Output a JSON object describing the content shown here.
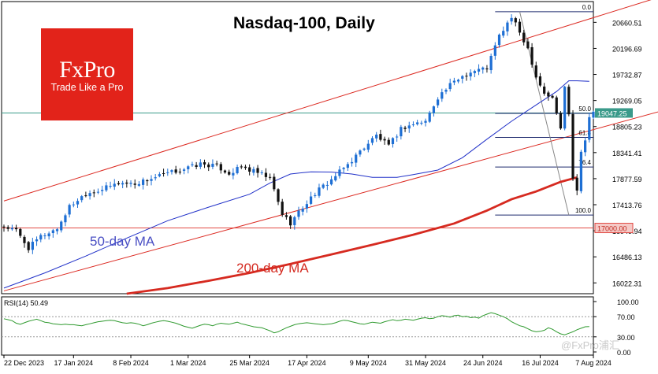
{
  "chart_data": [
    {
      "type": "candlestick",
      "title": "Nasdaq-100, Daily",
      "x_ticks": [
        "22 Dec 2023",
        "17 Jan 2024",
        "8 Feb 2024",
        "1 Mar 2024",
        "25 Mar 2024",
        "17 Apr 2024",
        "9 May 2024",
        "31 May 2024",
        "24 Jun 2024",
        "16 Jul 2024",
        "7 Aug 2024"
      ],
      "y_ticks": [
        20660.51,
        20196.69,
        19732.87,
        19269.05,
        18805.23,
        18341.41,
        17877.59,
        17413.76,
        16949.94,
        16486.13,
        16022.31
      ],
      "ylim": [
        15830,
        21030
      ],
      "last_price": 19047.25,
      "horizontal_level": 17000.0,
      "fib_levels": [
        {
          "label": "0.0",
          "value": 20850
        },
        {
          "label": "50.0",
          "value": 19040
        },
        {
          "label": "61.8",
          "value": 18612
        },
        {
          "label": "76.4",
          "value": 18085
        },
        {
          "label": "100.0",
          "value": 17230
        }
      ],
      "channel_upper": [
        {
          "x": 0,
          "y": 17480
        },
        {
          "x": 165,
          "y": 21220
        }
      ],
      "channel_lower": [
        {
          "x": 0,
          "y": 15880
        },
        {
          "x": 165,
          "y": 19170
        }
      ],
      "ma_50_label": "50-day MA",
      "ma_200_label": "200-day MA",
      "ma_50": [
        [
          0,
          15930
        ],
        [
          10,
          16200
        ],
        [
          20,
          16500
        ],
        [
          30,
          16820
        ],
        [
          40,
          17130
        ],
        [
          50,
          17370
        ],
        [
          60,
          17600
        ],
        [
          65,
          17800
        ],
        [
          70,
          17960
        ],
        [
          75,
          18000
        ],
        [
          80,
          17995
        ],
        [
          85,
          17960
        ],
        [
          90,
          17900
        ],
        [
          96,
          17900
        ],
        [
          100,
          17950
        ],
        [
          106,
          18030
        ],
        [
          112,
          18250
        ],
        [
          118,
          18580
        ],
        [
          124,
          18900
        ],
        [
          130,
          19190
        ],
        [
          135,
          19430
        ],
        [
          138,
          19620
        ],
        [
          140,
          19620
        ],
        [
          143,
          19610
        ]
      ],
      "ma_200": [
        [
          30,
          15830
        ],
        [
          40,
          15930
        ],
        [
          50,
          16060
        ],
        [
          60,
          16200
        ],
        [
          70,
          16360
        ],
        [
          80,
          16530
        ],
        [
          90,
          16700
        ],
        [
          100,
          16880
        ],
        [
          110,
          17080
        ],
        [
          118,
          17310
        ],
        [
          124,
          17510
        ],
        [
          130,
          17650
        ],
        [
          136,
          17820
        ],
        [
          140,
          17900
        ]
      ],
      "close_path": [
        [
          0,
          17020
        ],
        [
          3,
          16950
        ],
        [
          6,
          16640
        ],
        [
          9,
          16850
        ],
        [
          13,
          16990
        ],
        [
          16,
          17380
        ],
        [
          20,
          17620
        ],
        [
          24,
          17690
        ],
        [
          28,
          17800
        ],
        [
          32,
          17790
        ],
        [
          36,
          17880
        ],
        [
          40,
          17970
        ],
        [
          44,
          18050
        ],
        [
          48,
          18140
        ],
        [
          52,
          18100
        ],
        [
          55,
          17970
        ],
        [
          58,
          18080
        ],
        [
          62,
          17980
        ],
        [
          65,
          17880
        ],
        [
          68,
          17250
        ],
        [
          70,
          17090
        ],
        [
          72,
          17280
        ],
        [
          76,
          17620
        ],
        [
          80,
          17860
        ],
        [
          84,
          18130
        ],
        [
          88,
          18440
        ],
        [
          91,
          18650
        ],
        [
          94,
          18450
        ],
        [
          97,
          18770
        ],
        [
          100,
          18850
        ],
        [
          103,
          18900
        ],
        [
          106,
          19330
        ],
        [
          109,
          19540
        ],
        [
          112,
          19710
        ],
        [
          115,
          19800
        ],
        [
          118,
          19850
        ],
        [
          121,
          20420
        ],
        [
          124,
          20750
        ],
        [
          126,
          20480
        ],
        [
          128,
          20200
        ],
        [
          130,
          19700
        ],
        [
          132,
          19400
        ],
        [
          134,
          19300
        ],
        [
          136,
          18780
        ],
        [
          137,
          19500
        ],
        [
          138,
          19060
        ],
        [
          139,
          17900
        ],
        [
          140,
          17700
        ],
        [
          141,
          18350
        ],
        [
          142,
          18600
        ],
        [
          143,
          18980
        ],
        [
          144,
          19047
        ]
      ],
      "rsi": {
        "label": "RSI(14) 50.49",
        "value": 50.49,
        "ticks": [
          100.0,
          70.0,
          30.0,
          0.0
        ],
        "values": [
          66,
          64,
          62,
          57,
          55,
          58,
          61,
          63,
          65,
          62,
          59,
          58,
          56,
          55,
          54,
          55,
          54,
          54,
          53,
          52,
          54,
          56,
          58,
          60,
          61,
          62,
          63,
          62,
          60,
          58,
          57,
          58,
          57,
          55,
          52,
          54,
          57,
          59,
          61,
          62,
          61,
          59,
          57,
          54,
          51,
          49,
          47,
          50,
          53,
          55,
          54,
          52,
          55,
          57,
          56,
          55,
          57,
          59,
          56,
          54,
          52,
          50,
          49,
          48,
          45,
          42,
          38,
          40,
          44,
          48,
          51,
          54,
          56,
          57,
          58,
          57,
          56,
          55,
          54,
          55,
          56,
          58,
          61,
          63,
          62,
          60,
          58,
          56,
          55,
          57,
          59,
          58,
          57,
          60,
          62,
          64,
          62,
          63,
          65,
          64,
          63,
          65,
          67,
          68,
          66,
          67,
          70,
          72,
          71,
          69,
          72,
          73,
          70,
          71,
          68,
          69,
          67,
          72,
          75,
          78,
          76,
          73,
          70,
          66,
          60,
          56,
          52,
          50,
          46,
          42,
          40,
          41,
          43,
          48,
          45,
          40,
          36,
          34,
          37,
          40,
          44,
          47,
          50,
          50.5
        ]
      }
    }
  ],
  "logo": {
    "name": "FxPro",
    "tagline": "Trade Like a Pro"
  },
  "watermark": "@FxPro浦汇",
  "colors": {
    "channel": "#dc2a22",
    "ma50": "#2030c8",
    "ma200": "#d62a20",
    "bull": "#1e6fd4",
    "bear": "#111111",
    "fib": "#1e2a6e",
    "level17000": "#e24a44",
    "last_price_line": "#3a9a8a",
    "rsi_line": "#2f9a2f",
    "logo_bg": "#e2231a"
  }
}
